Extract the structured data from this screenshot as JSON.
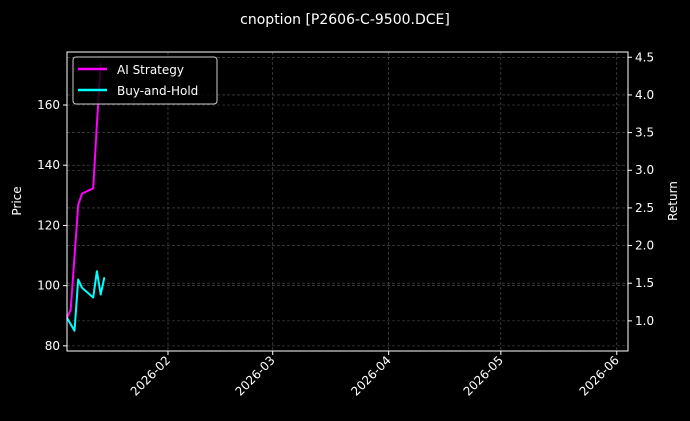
{
  "chart_data": {
    "type": "line",
    "title": "cnoption [P2606-C-9500.DCE]",
    "ylabel_left": "Price",
    "ylabel_right": "Return",
    "xlim": [
      "2026-01-05",
      "2026-06-04"
    ],
    "ylim_left": [
      78.3,
      177.6
    ],
    "ylim_right": [
      0.6,
      4.57
    ],
    "xticks": [
      "2026-02",
      "2026-03",
      "2026-04",
      "2026-05",
      "2026-06"
    ],
    "xtick_dates": [
      "2026-02-01",
      "2026-03-01",
      "2026-04-01",
      "2026-05-01",
      "2026-06-01"
    ],
    "yticks_left": [
      80,
      100,
      120,
      140,
      160
    ],
    "yticks_right": [
      1.0,
      1.5,
      2.0,
      2.5,
      3.0,
      3.5,
      4.0,
      4.5
    ],
    "grid": true,
    "legend_position": "top-left",
    "series": [
      {
        "name": "AI Strategy",
        "color": "#ff00ff",
        "axis": "right",
        "x": [
          "2026-01-05",
          "2026-01-06",
          "2026-01-08",
          "2026-01-09",
          "2026-01-12",
          "2026-01-13",
          "2026-01-14"
        ],
        "y": [
          1.04,
          1.15,
          2.54,
          2.69,
          2.76,
          3.61,
          4.42
        ]
      },
      {
        "name": "Buy-and-Hold",
        "color": "#00ffff",
        "axis": "right",
        "x": [
          "2026-01-05",
          "2026-01-07",
          "2026-01-08",
          "2026-01-09",
          "2026-01-12",
          "2026-01-13",
          "2026-01-14",
          "2026-01-15"
        ],
        "y": [
          1.04,
          0.87,
          1.55,
          1.44,
          1.31,
          1.66,
          1.35,
          1.58
        ]
      }
    ]
  }
}
